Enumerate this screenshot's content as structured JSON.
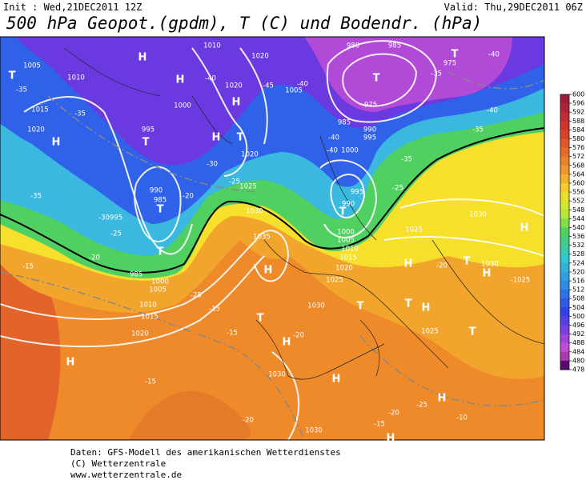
{
  "header": {
    "init": "Init : Wed,21DEC2011 12Z",
    "valid": "Valid: Thu,29DEC2011 06Z",
    "title": "500 hPa Geopot.(gpdm), T (C) und Bodendr. (hPa)"
  },
  "colorbar": {
    "ticks": [
      600,
      596,
      592,
      588,
      584,
      580,
      576,
      572,
      568,
      564,
      560,
      556,
      552,
      548,
      544,
      540,
      536,
      532,
      528,
      524,
      520,
      516,
      512,
      508,
      504,
      500,
      496,
      492,
      488,
      484,
      480,
      478
    ]
  },
  "map": {
    "centers": [
      "H",
      "T",
      "H",
      "H",
      "T",
      "H",
      "H",
      "T",
      "T",
      "T",
      "H",
      "T",
      "H",
      "H",
      "H",
      "H",
      "T",
      "T",
      "T",
      "H",
      "T",
      "H",
      "H",
      "T",
      "H",
      "T",
      "H",
      "T"
    ],
    "isobars": [
      "1005",
      "1010",
      "1015",
      "1020",
      "1010",
      "1020",
      "1005",
      "1000",
      "995",
      "1020",
      "990",
      "985",
      "995",
      "1030",
      "1035",
      "1025",
      "1020",
      "980",
      "985",
      "975",
      "975",
      "985",
      "990",
      "995",
      "1000",
      "995",
      "990",
      "1000",
      "1005",
      "1010",
      "1015",
      "1020",
      "1025",
      "1030",
      "1030",
      "1025",
      "1030",
      "-1025",
      "1025",
      "1030",
      "1030",
      "985",
      "1000",
      "1005",
      "1010",
      "1015",
      "1020"
    ],
    "temperatures": [
      "-40",
      "-35",
      "-45",
      "-40",
      "-40",
      "-35",
      "-35",
      "-30",
      "-25",
      "-20",
      "-35",
      "-30",
      "-25",
      "-20",
      "-15",
      "-25",
      "-15",
      "-15",
      "-20",
      "-15",
      "-20",
      "-20",
      "-15",
      "-25",
      "-10",
      "-20",
      "-40",
      "-35",
      "-35",
      "-25",
      "-40",
      "-40"
    ]
  },
  "footer": {
    "source": "Daten: GFS-Modell des amerikanischen Wetterdienstes",
    "copyright": "(C) Wetterzentrale",
    "url": "www.wetterzentrale.de"
  }
}
